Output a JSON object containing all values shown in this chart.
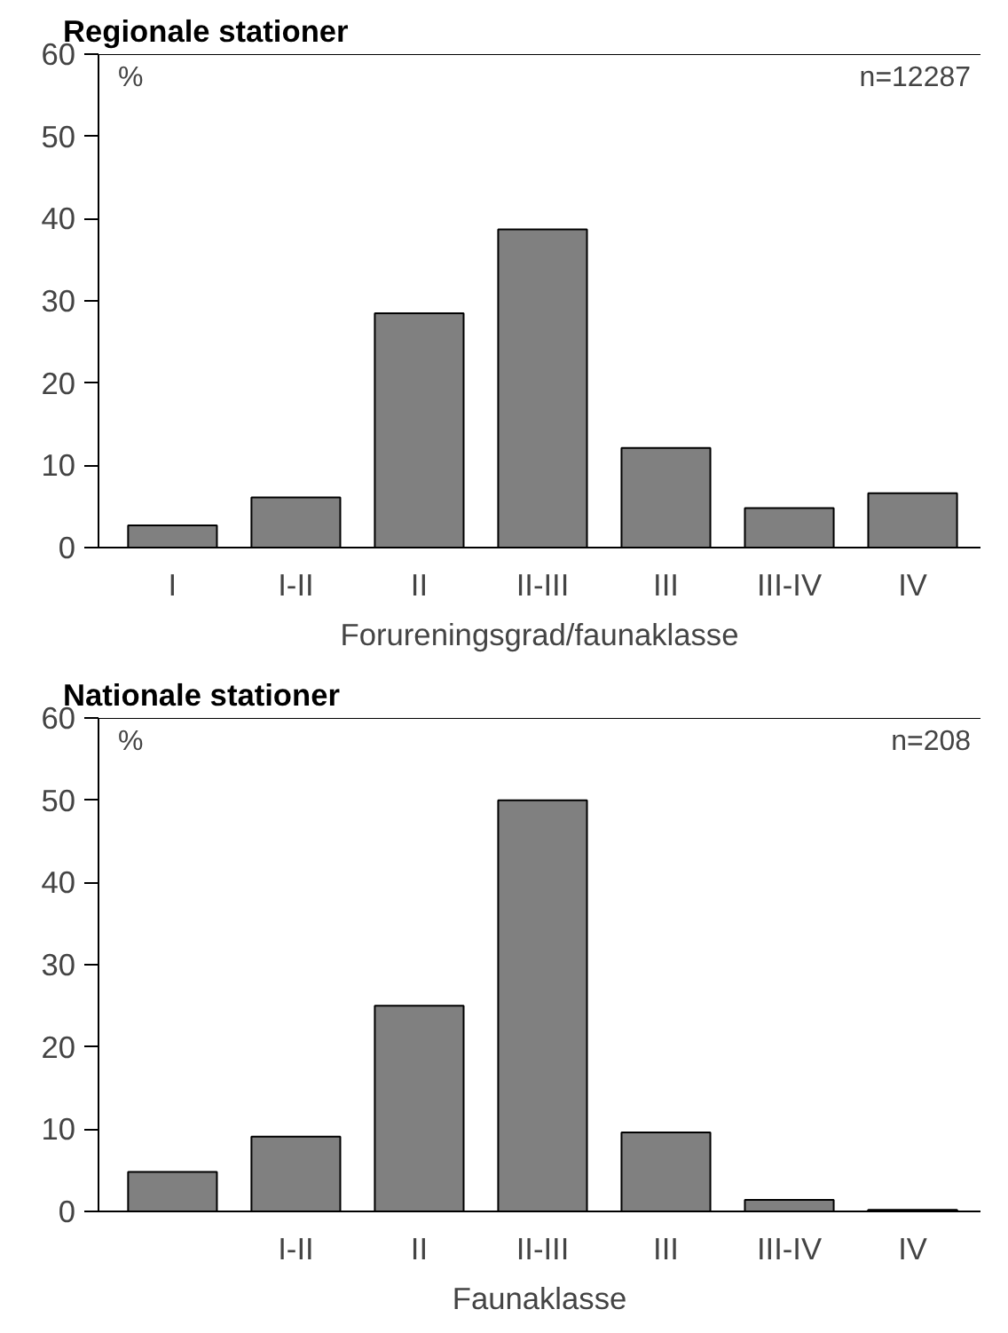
{
  "chart_data": [
    {
      "type": "bar",
      "title": "Regionale stationer",
      "xlabel": "Forureningsgrad/faunaklasse",
      "categories": [
        "I",
        "I-II",
        "II",
        "II-III",
        "III",
        "III-IV",
        "IV"
      ],
      "values": [
        2.7,
        6.1,
        28.5,
        38.7,
        12.1,
        4.8,
        6.6
      ],
      "color": "#808080",
      "ylim": [
        0,
        60
      ],
      "yticks": [
        0,
        10,
        20,
        30,
        40,
        50,
        60
      ],
      "grid": false,
      "annotations": [
        "%",
        "n=12287"
      ]
    },
    {
      "type": "bar",
      "title": "Nationale stationer",
      "xlabel": "Faunaklasse",
      "categories": [
        null,
        "I-II",
        "II",
        "II-III",
        "III",
        "III-IV",
        "IV"
      ],
      "values": [
        4.8,
        9.1,
        25.0,
        50.0,
        9.6,
        1.4,
        0.2
      ],
      "color": "#808080",
      "ylim": [
        0,
        60
      ],
      "yticks": [
        0,
        10,
        20,
        30,
        40,
        50,
        60
      ],
      "grid": false,
      "annotations": [
        "%",
        "n=208"
      ]
    }
  ]
}
